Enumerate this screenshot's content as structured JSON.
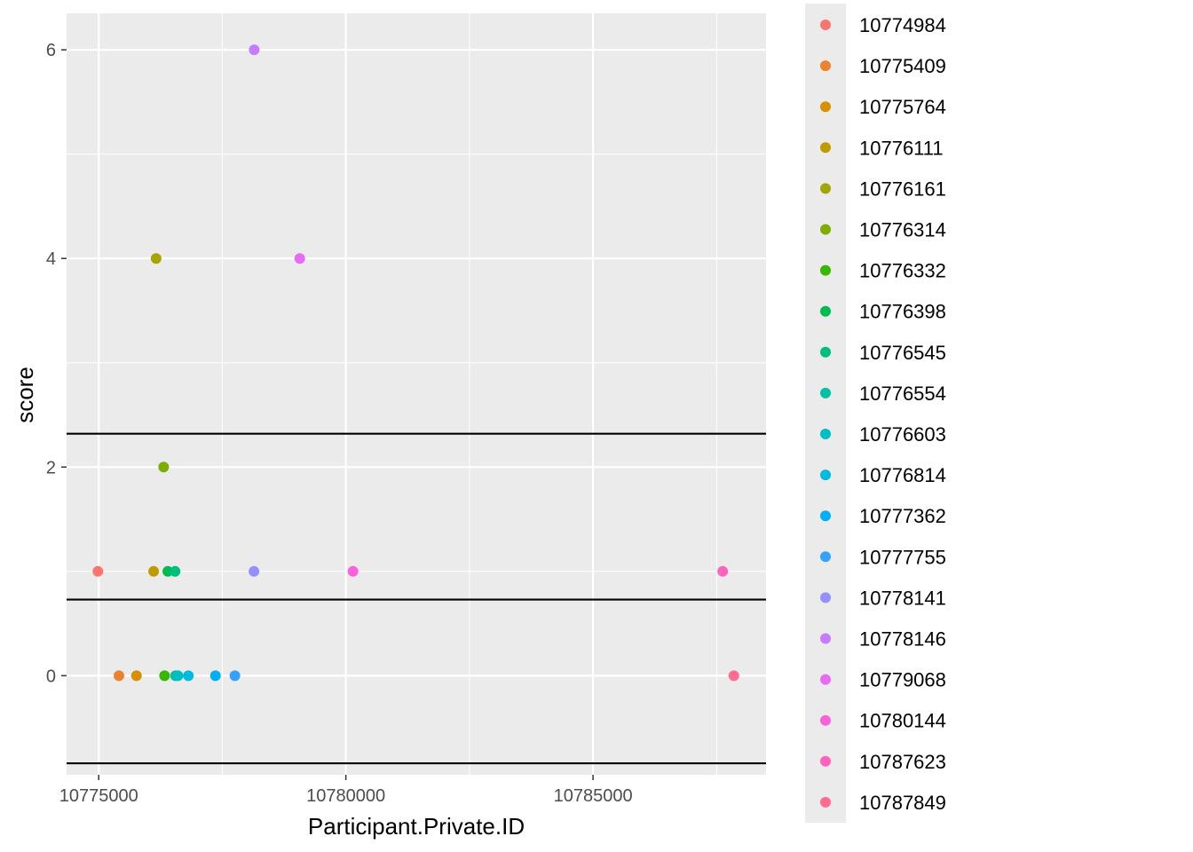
{
  "chart_data": {
    "type": "scatter",
    "xlabel": "Participant.Private.ID",
    "ylabel": "score",
    "xlim": [
      10774350,
      10788500
    ],
    "ylim": [
      -0.95,
      6.35
    ],
    "x_ticks": [
      10775000,
      10780000,
      10785000
    ],
    "x_tick_labels": [
      "10775000",
      "10780000",
      "10785000"
    ],
    "y_ticks": [
      0,
      2,
      4,
      6
    ],
    "y_tick_labels": [
      "0",
      "2",
      "4",
      "6"
    ],
    "hlines": [
      2.32,
      0.73,
      -0.84
    ],
    "grid": true,
    "legend_position": "right",
    "series": [
      {
        "name": "10774984",
        "color": "#F8766D",
        "points": [
          [
            10774984,
            1
          ]
        ]
      },
      {
        "name": "10775409",
        "color": "#EA8331",
        "points": [
          [
            10775409,
            0
          ]
        ]
      },
      {
        "name": "10775764",
        "color": "#D89000",
        "points": [
          [
            10775764,
            0
          ]
        ]
      },
      {
        "name": "10776111",
        "color": "#C09B00",
        "points": [
          [
            10776111,
            1
          ]
        ]
      },
      {
        "name": "10776161",
        "color": "#A3A500",
        "points": [
          [
            10776161,
            4
          ]
        ]
      },
      {
        "name": "10776314",
        "color": "#7CAE00",
        "points": [
          [
            10776314,
            2
          ]
        ]
      },
      {
        "name": "10776332",
        "color": "#39B600",
        "points": [
          [
            10776332,
            0
          ]
        ]
      },
      {
        "name": "10776398",
        "color": "#00BB4E",
        "points": [
          [
            10776398,
            1
          ]
        ]
      },
      {
        "name": "10776545",
        "color": "#00BF7D",
        "points": [
          [
            10776545,
            1
          ]
        ]
      },
      {
        "name": "10776554",
        "color": "#00C1A3",
        "points": [
          [
            10776554,
            0
          ]
        ]
      },
      {
        "name": "10776603",
        "color": "#00BFC4",
        "points": [
          [
            10776603,
            0
          ]
        ]
      },
      {
        "name": "10776814",
        "color": "#00BAE0",
        "points": [
          [
            10776814,
            0
          ]
        ]
      },
      {
        "name": "10777362",
        "color": "#00B0F6",
        "points": [
          [
            10777362,
            0
          ]
        ]
      },
      {
        "name": "10777755",
        "color": "#35A2FF",
        "points": [
          [
            10777755,
            0
          ]
        ]
      },
      {
        "name": "10778141",
        "color": "#9590FF",
        "points": [
          [
            10778141,
            1
          ]
        ]
      },
      {
        "name": "10778146",
        "color": "#C77CFF",
        "points": [
          [
            10778146,
            6
          ]
        ]
      },
      {
        "name": "10779068",
        "color": "#E76BF3",
        "points": [
          [
            10779068,
            4
          ]
        ]
      },
      {
        "name": "10780144",
        "color": "#FA62DB",
        "points": [
          [
            10780144,
            1
          ]
        ]
      },
      {
        "name": "10787623",
        "color": "#FF62BC",
        "points": [
          [
            10787623,
            1
          ]
        ]
      },
      {
        "name": "10787849",
        "color": "#FF6C91",
        "points": [
          [
            10787849,
            0
          ]
        ]
      }
    ]
  }
}
